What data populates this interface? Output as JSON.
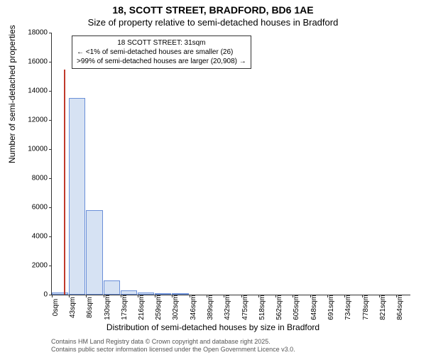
{
  "title": "18, SCOTT STREET, BRADFORD, BD6 1AE",
  "subtitle": "Size of property relative to semi-detached houses in Bradford",
  "y_axis_label": "Number of semi-detached properties",
  "x_axis_label": "Distribution of semi-detached houses by size in Bradford",
  "chart": {
    "type": "histogram",
    "ylim": [
      0,
      18000
    ],
    "ytick_step": 2000,
    "yticks": [
      0,
      2000,
      4000,
      6000,
      8000,
      10000,
      12000,
      14000,
      16000,
      18000
    ],
    "xlim": [
      0,
      900
    ],
    "xticks": [
      0,
      43,
      86,
      130,
      173,
      216,
      259,
      302,
      346,
      389,
      432,
      475,
      518,
      562,
      605,
      648,
      691,
      734,
      778,
      821,
      864
    ],
    "xtick_unit": "sqm",
    "bars": [
      {
        "x_start": 0,
        "x_end": 43,
        "value": 150
      },
      {
        "x_start": 43,
        "x_end": 86,
        "value": 13500
      },
      {
        "x_start": 86,
        "x_end": 130,
        "value": 5800
      },
      {
        "x_start": 130,
        "x_end": 173,
        "value": 1000
      },
      {
        "x_start": 173,
        "x_end": 216,
        "value": 300
      },
      {
        "x_start": 216,
        "x_end": 259,
        "value": 150
      },
      {
        "x_start": 259,
        "x_end": 302,
        "value": 100
      },
      {
        "x_start": 302,
        "x_end": 346,
        "value": 50
      }
    ],
    "bar_fill": "#d6e2f3",
    "bar_stroke": "#6a8fd8",
    "marker_value": 31,
    "marker_color": "#c0392b",
    "background_color": "#ffffff",
    "axis_color": "#333333",
    "tick_font_size": 10,
    "label_font_size": 12
  },
  "callout": {
    "line1": "18 SCOTT STREET: 31sqm",
    "line2": "← <1% of semi-detached houses are smaller (26)",
    "line3": ">99% of semi-detached houses are larger (20,908) →"
  },
  "credits": {
    "line1": "Contains HM Land Registry data © Crown copyright and database right 2025.",
    "line2": "Contains public sector information licensed under the Open Government Licence v3.0."
  }
}
